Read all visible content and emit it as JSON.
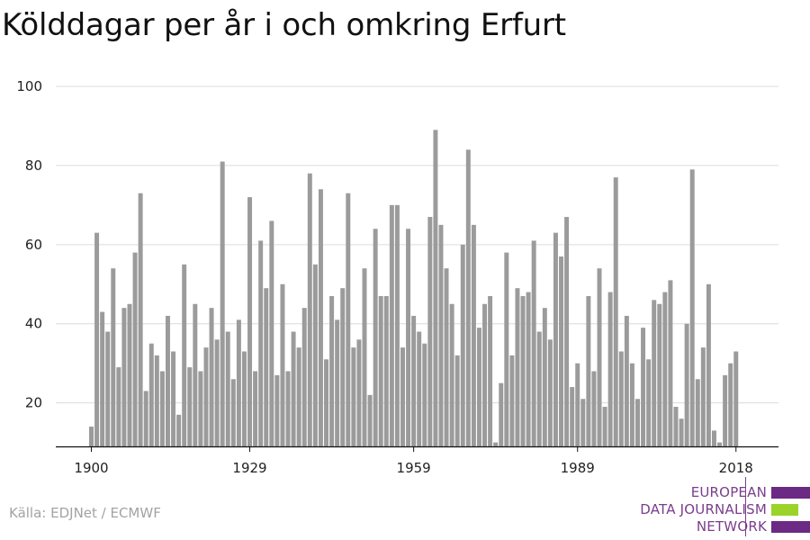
{
  "title": "Kölddagar per år i och omkring Erfurt",
  "source": "Källa: EDJNet / ECMWF",
  "logo": {
    "lines": [
      "EUROPEAN",
      "DATA JOURNALISM",
      "NETWORK"
    ],
    "colors": [
      "#6b2a84",
      "#9bd32a",
      "#6b2a84"
    ]
  },
  "chart_data": {
    "type": "bar",
    "title": "Kölddagar per år i och omkring Erfurt",
    "xlabel": "",
    "ylabel": "",
    "x_start": 1900,
    "x_ticks": [
      1900,
      1929,
      1959,
      1989,
      2018
    ],
    "y_ticks": [
      20,
      40,
      60,
      80,
      100
    ],
    "ylim": [
      9,
      100
    ],
    "grid": true,
    "bar_color": "#9b9b9b",
    "values": [
      14,
      63,
      43,
      38,
      54,
      29,
      44,
      45,
      58,
      73,
      23,
      35,
      32,
      28,
      42,
      33,
      17,
      55,
      29,
      45,
      28,
      34,
      44,
      36,
      81,
      38,
      26,
      41,
      33,
      72,
      28,
      61,
      49,
      66,
      27,
      50,
      28,
      38,
      34,
      44,
      78,
      55,
      74,
      31,
      47,
      41,
      49,
      73,
      34,
      36,
      54,
      22,
      64,
      47,
      47,
      70,
      70,
      34,
      64,
      42,
      38,
      35,
      67,
      89,
      65,
      54,
      45,
      32,
      60,
      84,
      65,
      39,
      45,
      47,
      10,
      25,
      58,
      32,
      49,
      47,
      48,
      61,
      38,
      44,
      36,
      63,
      57,
      67,
      24,
      30,
      21,
      47,
      28,
      54,
      19,
      48,
      77,
      33,
      42,
      30,
      21,
      39,
      31,
      46,
      45,
      48,
      51,
      19,
      16,
      40,
      79,
      26,
      34,
      50,
      13,
      10,
      27,
      30,
      33
    ]
  }
}
